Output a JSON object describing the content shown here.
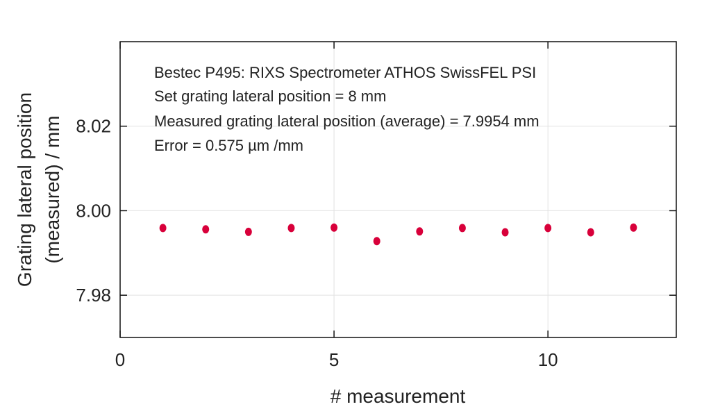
{
  "chart_data": {
    "type": "scatter",
    "title": "",
    "xlabel": "# measurement",
    "ylabel_lines": [
      "Grating lateral position",
      "(measured) / mm"
    ],
    "xlim": [
      0,
      13
    ],
    "ylim": [
      7.97,
      8.04
    ],
    "xticks": [
      0,
      5,
      10
    ],
    "xtick_labels": [
      "0",
      "5",
      "10"
    ],
    "yticks": [
      7.98,
      8.0,
      8.02
    ],
    "ytick_labels": [
      "7.98",
      "8.00",
      "8.02"
    ],
    "grid": true,
    "annotations": [
      "Bestec P495: RIXS Spectrometer ATHOS SwissFEL PSI",
      "Set grating lateral position = 8 mm",
      "Measured grating lateral position (average) = 7.9954 mm",
      "Error = 0.575 µm /mm"
    ],
    "series": [
      {
        "name": "measured",
        "color": "#d8003a",
        "x": [
          1,
          2,
          3,
          4,
          5,
          6,
          7,
          8,
          9,
          10,
          11,
          12
        ],
        "y": [
          7.9959,
          7.9956,
          7.995,
          7.9959,
          7.996,
          7.9928,
          7.9951,
          7.9959,
          7.9949,
          7.9959,
          7.9949,
          7.996
        ]
      }
    ]
  }
}
